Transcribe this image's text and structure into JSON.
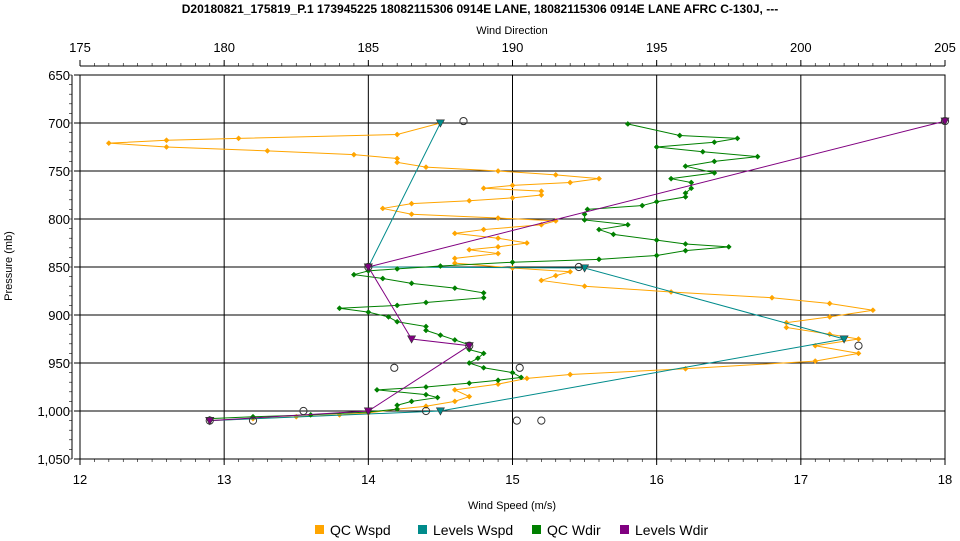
{
  "chart_data": {
    "type": "line",
    "title": "D20180821_175819_P.1 173945225 18082115306 0914E LANE, 18082115306 0914E LANE AFRC C-130J, ---",
    "top_axis_label": "Wind Direction",
    "xlabel": "Wind Speed (m/s)",
    "ylabel": "Pressure (mb)",
    "xlim": [
      12,
      18
    ],
    "top_xlim": [
      175,
      205
    ],
    "ylim": [
      650,
      1050
    ],
    "y_inverted": true,
    "grid": true,
    "legend_position": "bottom",
    "x_ticks": [
      "12",
      "13",
      "14",
      "15",
      "16",
      "17",
      "18"
    ],
    "top_ticks": [
      "175",
      "180",
      "185",
      "190",
      "195",
      "200",
      "205"
    ],
    "y_ticks": [
      "650",
      "700",
      "750",
      "800",
      "850",
      "900",
      "950",
      "1,000",
      "1,050"
    ],
    "series": [
      {
        "name": "QC Wspd",
        "axis": "bottom",
        "color": "#FFA500",
        "marker": "diamond",
        "points": [
          [
            14.5,
            700
          ],
          [
            14.2,
            712
          ],
          [
            13.1,
            716
          ],
          [
            12.6,
            718
          ],
          [
            12.2,
            721
          ],
          [
            12.6,
            725
          ],
          [
            13.3,
            729
          ],
          [
            13.9,
            733
          ],
          [
            14.2,
            737
          ],
          [
            14.2,
            741
          ],
          [
            14.4,
            746
          ],
          [
            14.9,
            750
          ],
          [
            15.3,
            754
          ],
          [
            15.6,
            758
          ],
          [
            15.4,
            762
          ],
          [
            15.0,
            765
          ],
          [
            14.8,
            768
          ],
          [
            15.2,
            771
          ],
          [
            15.2,
            775
          ],
          [
            15.0,
            778
          ],
          [
            14.7,
            781
          ],
          [
            14.3,
            784
          ],
          [
            14.1,
            789
          ],
          [
            14.3,
            795
          ],
          [
            14.9,
            799
          ],
          [
            15.3,
            802
          ],
          [
            15.2,
            806
          ],
          [
            14.8,
            811
          ],
          [
            14.6,
            815
          ],
          [
            14.9,
            820
          ],
          [
            15.1,
            825
          ],
          [
            14.9,
            829
          ],
          [
            14.7,
            832
          ],
          [
            14.9,
            836
          ],
          [
            14.6,
            841
          ],
          [
            14.6,
            846
          ],
          [
            15.0,
            851
          ],
          [
            15.4,
            855
          ],
          [
            15.3,
            859
          ],
          [
            15.2,
            864
          ],
          [
            15.5,
            870
          ],
          [
            16.1,
            876
          ],
          [
            16.8,
            882
          ],
          [
            17.2,
            888
          ],
          [
            17.5,
            895
          ],
          [
            17.2,
            902
          ],
          [
            16.9,
            908
          ],
          [
            16.9,
            913
          ],
          [
            17.2,
            920
          ],
          [
            17.4,
            925
          ],
          [
            17.1,
            932
          ],
          [
            17.4,
            940
          ],
          [
            17.1,
            948
          ],
          [
            16.2,
            956
          ],
          [
            15.4,
            962
          ],
          [
            15.1,
            966
          ],
          [
            14.9,
            972
          ],
          [
            14.6,
            978
          ],
          [
            14.7,
            985
          ],
          [
            14.6,
            990
          ],
          [
            14.4,
            995
          ],
          [
            14.2,
            998
          ],
          [
            14.0,
            1002
          ],
          [
            13.8,
            1004
          ],
          [
            13.5,
            1006
          ],
          [
            13.2,
            1008
          ],
          [
            12.9,
            1010
          ]
        ]
      },
      {
        "name": "Levels Wspd",
        "axis": "bottom",
        "color": "#008B8B",
        "marker": "triangle-down",
        "points": [
          [
            14.5,
            700
          ],
          [
            14.0,
            850
          ],
          [
            15.5,
            851
          ],
          [
            17.3,
            925
          ],
          [
            14.5,
            1000
          ],
          [
            12.9,
            1010
          ]
        ]
      },
      {
        "name": "QC Wdir",
        "axis": "top",
        "color": "#008000",
        "marker": "diamond",
        "points": [
          [
            194,
            701
          ],
          [
            195.8,
            713
          ],
          [
            197.8,
            716
          ],
          [
            197,
            720
          ],
          [
            195,
            725
          ],
          [
            196.6,
            730
          ],
          [
            198.5,
            735
          ],
          [
            197,
            740
          ],
          [
            196,
            745
          ],
          [
            197,
            752
          ],
          [
            195.5,
            758
          ],
          [
            196.2,
            762
          ],
          [
            196.2,
            768
          ],
          [
            196,
            773
          ],
          [
            196,
            777
          ],
          [
            195,
            782
          ],
          [
            194.5,
            786
          ],
          [
            192.6,
            790
          ],
          [
            192.5,
            795
          ],
          [
            192.5,
            801
          ],
          [
            194,
            806
          ],
          [
            193,
            811
          ],
          [
            193.5,
            816
          ],
          [
            195,
            822
          ],
          [
            196,
            826
          ],
          [
            197.5,
            829
          ],
          [
            196,
            833
          ],
          [
            195,
            838
          ],
          [
            193,
            842
          ],
          [
            190,
            845
          ],
          [
            187.5,
            849
          ],
          [
            186,
            852
          ],
          [
            185,
            854
          ],
          [
            184.5,
            858
          ],
          [
            185.5,
            862
          ],
          [
            186.5,
            867
          ],
          [
            188,
            872
          ],
          [
            189,
            877
          ],
          [
            189,
            882
          ],
          [
            187,
            887
          ],
          [
            186,
            890
          ],
          [
            184,
            893
          ],
          [
            185,
            897
          ],
          [
            185.7,
            902
          ],
          [
            186,
            907
          ],
          [
            187,
            912
          ],
          [
            187,
            916
          ],
          [
            187.5,
            921
          ],
          [
            188,
            926
          ],
          [
            188.5,
            931
          ],
          [
            188.5,
            936
          ],
          [
            189,
            940
          ],
          [
            188.8,
            945
          ],
          [
            188.5,
            950
          ],
          [
            189,
            955
          ],
          [
            190,
            960
          ],
          [
            190.3,
            965
          ],
          [
            189.5,
            968
          ],
          [
            188.5,
            971
          ],
          [
            187,
            975
          ],
          [
            185.3,
            978
          ],
          [
            187,
            983
          ],
          [
            187.4,
            986
          ],
          [
            186.5,
            990
          ],
          [
            186,
            994
          ],
          [
            186,
            998
          ],
          [
            185,
            1001
          ],
          [
            183,
            1004
          ],
          [
            181,
            1006
          ],
          [
            179.5,
            1008
          ]
        ]
      },
      {
        "name": "Levels Wdir",
        "axis": "top",
        "color": "#800080",
        "marker": "triangle-down",
        "points": [
          [
            205,
            698
          ],
          [
            185,
            850
          ],
          [
            186.5,
            925
          ],
          [
            188.5,
            932
          ],
          [
            185,
            1000
          ],
          [
            179.5,
            1010
          ]
        ]
      }
    ],
    "open_circles": [
      {
        "axis": "bottom",
        "points": [
          [
            14.66,
            698
          ],
          [
            15.46,
            850
          ],
          [
            17.4,
            932
          ],
          [
            13.55,
            1000
          ],
          [
            14.4,
            1000
          ],
          [
            13.2,
            1010
          ],
          [
            15.03,
            1010
          ],
          [
            12.9,
            1010
          ],
          [
            15.2,
            1010
          ],
          [
            14.18,
            955
          ],
          [
            15.05,
            955
          ]
        ]
      },
      {
        "axis": "top",
        "points": [
          [
            205,
            698
          ],
          [
            185,
            850
          ],
          [
            188.5,
            932
          ]
        ]
      }
    ]
  }
}
